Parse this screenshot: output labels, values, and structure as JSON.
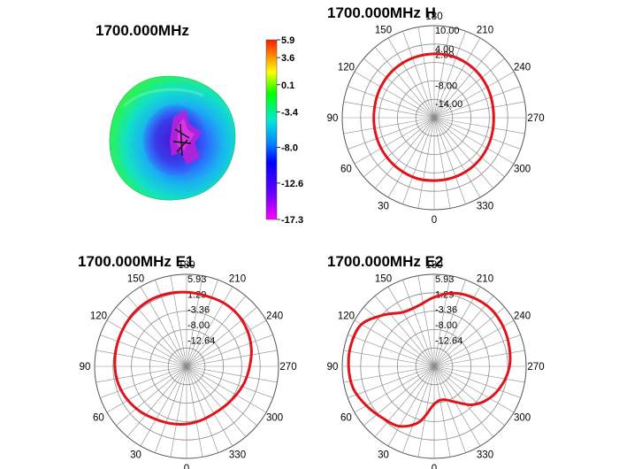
{
  "chart_data": [
    {
      "type": "heatmap",
      "subtype": "3d-pattern",
      "title": "1700.000MHz",
      "colorbar": {
        "ticks": [
          "5.9",
          "3.6",
          "0.1",
          "-3.4",
          "-8.0",
          "-12.6",
          "-17.3"
        ],
        "values": [
          5.9,
          3.6,
          0.1,
          -3.4,
          -8.0,
          -12.6,
          -17.3
        ],
        "range": [
          -17.3,
          5.9
        ],
        "colors": [
          "#ff2a00",
          "#ffff00",
          "#00ff00",
          "#00e5e5",
          "#0000ff",
          "#7a00ff",
          "#ff00ff"
        ]
      }
    },
    {
      "type": "line",
      "subtype": "polar",
      "title": "1700.000MHz  H",
      "radial_ticks": [
        "10.00",
        "4.00",
        "2.00",
        "-8.00",
        "-14.00"
      ],
      "radial_values": [
        10,
        4,
        2,
        -8,
        -14
      ],
      "radial_range": [
        -20,
        10
      ],
      "angle_labels": [
        "0",
        "30",
        "60",
        "90",
        "120",
        "150",
        "180",
        "210",
        "240",
        "270",
        "300",
        "330"
      ],
      "series": [
        {
          "name": "H",
          "color": "#e0141b",
          "angles": [
            0,
            15,
            30,
            45,
            60,
            75,
            90,
            105,
            120,
            135,
            150,
            165,
            180,
            195,
            210,
            225,
            240,
            255,
            270,
            285,
            300,
            315,
            330,
            345
          ],
          "values": [
            0.5,
            0.6,
            0.4,
            0.2,
            0.0,
            -0.2,
            -0.3,
            -0.2,
            0.1,
            0.4,
            0.6,
            0.7,
            0.8,
            0.9,
            0.7,
            0.4,
            0.0,
            -0.4,
            -0.6,
            -0.4,
            -0.1,
            0.2,
            0.4,
            0.5
          ]
        }
      ]
    },
    {
      "type": "line",
      "subtype": "polar",
      "title": "1700.000MHz  E1",
      "radial_ticks": [
        "5.93",
        "1.29",
        "-3.36",
        "-8.00",
        "-12.64"
      ],
      "radial_values": [
        5.93,
        1.29,
        -3.36,
        -8.0,
        -12.64
      ],
      "radial_range": [
        -21.93,
        5.93
      ],
      "angle_labels": [
        "0",
        "30",
        "60",
        "90",
        "120",
        "150",
        "180",
        "210",
        "240",
        "270",
        "300",
        "330"
      ],
      "series": [
        {
          "name": "E1",
          "color": "#e0141b",
          "angles": [
            0,
            15,
            30,
            45,
            60,
            75,
            90,
            105,
            120,
            135,
            150,
            165,
            180,
            195,
            210,
            225,
            240,
            255,
            270,
            285,
            300,
            315,
            330,
            345
          ],
          "values": [
            -4.5,
            -4.0,
            -3.4,
            -2.4,
            -1.4,
            -0.6,
            -0.2,
            0.1,
            0.4,
            0.8,
            1.0,
            0.8,
            0.5,
            0.2,
            0.3,
            0.1,
            -0.6,
            -1.6,
            -2.8,
            -3.7,
            -4.6,
            -5.2,
            -5.4,
            -5.0
          ]
        }
      ]
    },
    {
      "type": "line",
      "subtype": "polar",
      "title": "1700.000MHz  E2",
      "radial_ticks": [
        "5.93",
        "1.29",
        "-3.36",
        "-8.00",
        "-12.64"
      ],
      "radial_values": [
        5.93,
        1.29,
        -3.36,
        -8.0,
        -12.64
      ],
      "radial_range": [
        -21.93,
        5.93
      ],
      "angle_labels": [
        "0",
        "30",
        "60",
        "90",
        "120",
        "150",
        "180",
        "210",
        "240",
        "270",
        "300",
        "330"
      ],
      "series": [
        {
          "name": "E2",
          "color": "#e0141b",
          "angles": [
            0,
            15,
            30,
            45,
            60,
            75,
            90,
            105,
            120,
            135,
            150,
            165,
            180,
            195,
            210,
            225,
            240,
            255,
            270,
            285,
            300,
            315,
            330,
            345
          ],
          "values": [
            -10.5,
            -4.5,
            -1.0,
            0.2,
            1.8,
            3.5,
            4.0,
            4.1,
            3.5,
            0.0,
            -3.0,
            -3.0,
            -1.0,
            1.0,
            2.0,
            2.5,
            2.2,
            1.6,
            0.9,
            -0.6,
            -2.6,
            -5.5,
            -9.5,
            -11.5
          ]
        }
      ]
    }
  ]
}
